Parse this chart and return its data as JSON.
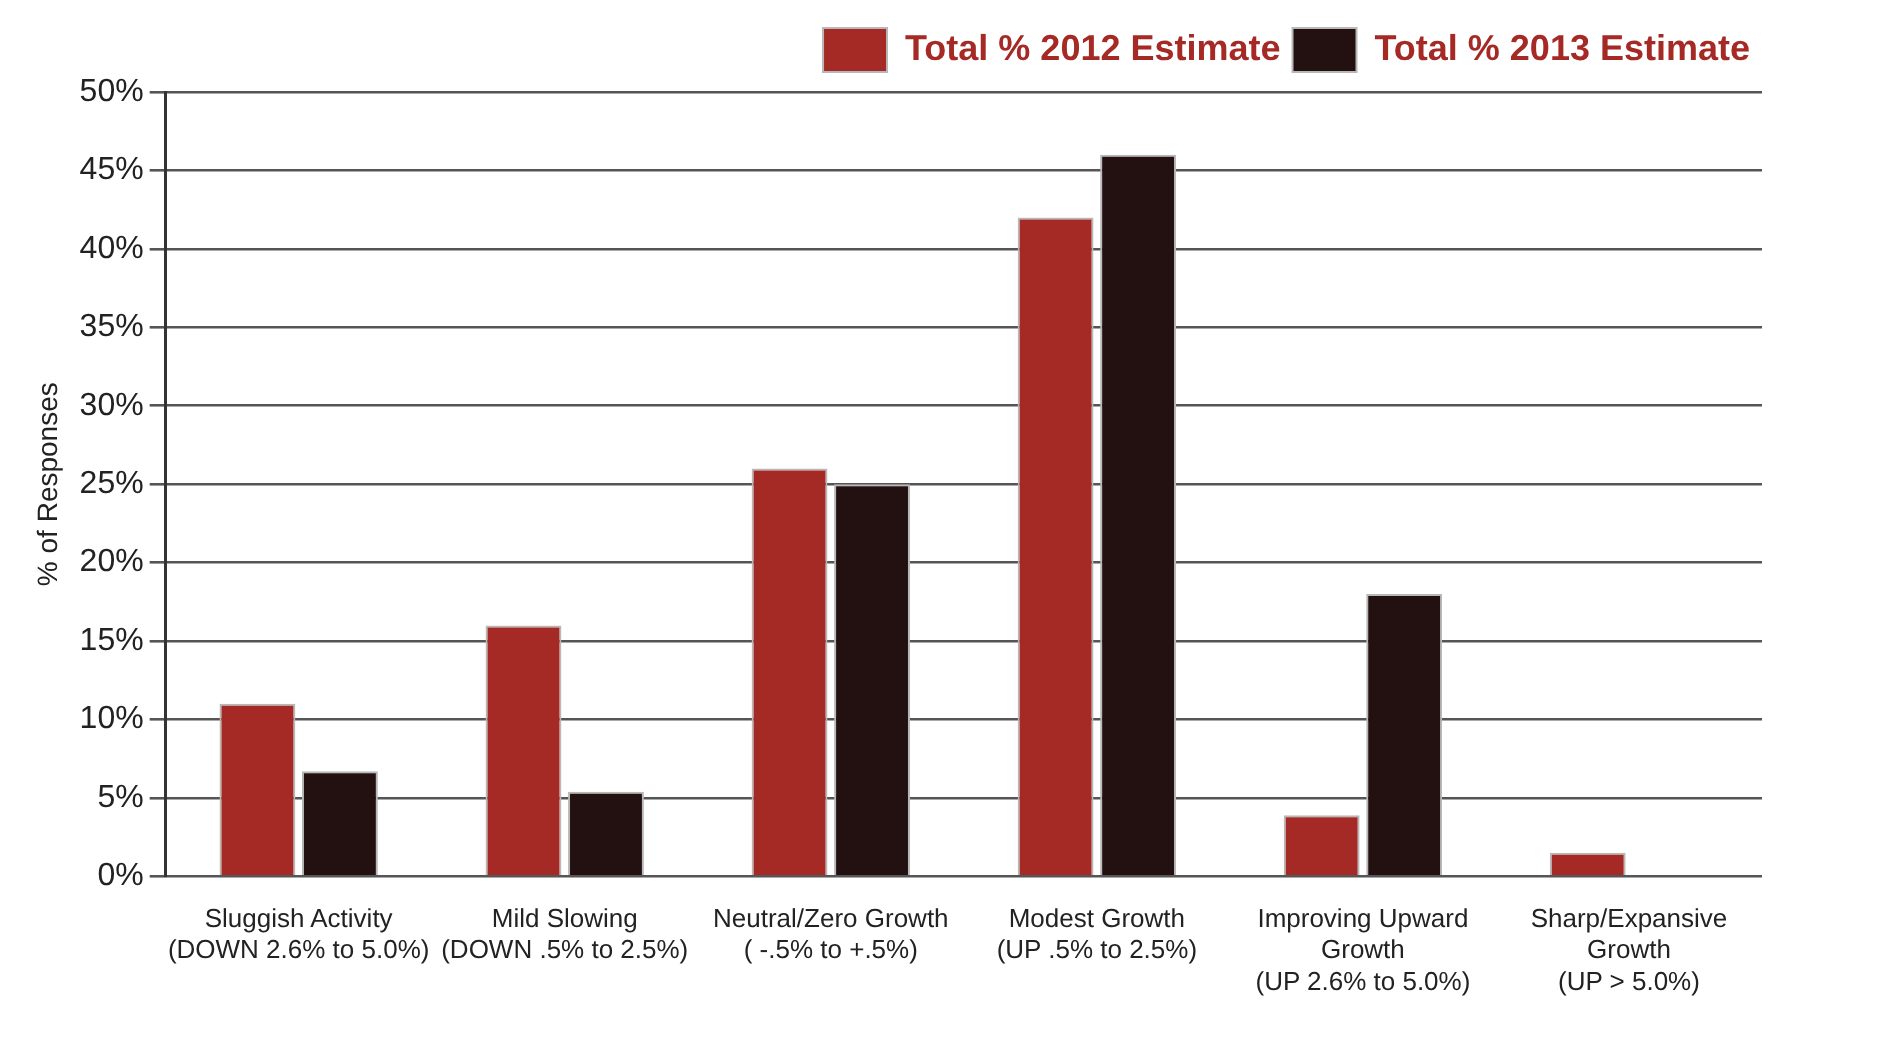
{
  "chart_data": {
    "type": "bar",
    "ylabel": "% of Responses",
    "categories": [
      "Sluggish Activity\n(DOWN 2.6% to 5.0%)",
      "Mild Slowing\n(DOWN .5% to 2.5%)",
      "Neutral/Zero Growth\n( -.5% to +.5%)",
      "Modest Growth\n(UP .5% to 2.5%)",
      "Improving Upward\nGrowth\n(UP 2.6% to 5.0%)",
      "Sharp/Expansive\nGrowth\n(UP > 5.0%)"
    ],
    "series": [
      {
        "name": "Total % 2012 Estimate",
        "color": "#a52a25",
        "values": [
          11,
          16,
          26,
          42,
          3.9,
          1.5
        ]
      },
      {
        "name": "Total % 2013 Estimate",
        "color": "#231011",
        "values": [
          6.7,
          5.4,
          25,
          46,
          18,
          0
        ]
      }
    ],
    "ylim": [
      0,
      50
    ],
    "yticks": [
      {
        "value": 0,
        "label": "0%"
      },
      {
        "value": 5,
        "label": "5%"
      },
      {
        "value": 10,
        "label": "10%"
      },
      {
        "value": 15,
        "label": "15%"
      },
      {
        "value": 20,
        "label": "20%"
      },
      {
        "value": 25,
        "label": "25%"
      },
      {
        "value": 30,
        "label": "30%"
      },
      {
        "value": 35,
        "label": "35%"
      },
      {
        "value": 40,
        "label": "40%"
      },
      {
        "value": 45,
        "label": "45%"
      },
      {
        "value": 50,
        "label": "50%"
      }
    ],
    "grid": "y",
    "legend": "top right"
  }
}
